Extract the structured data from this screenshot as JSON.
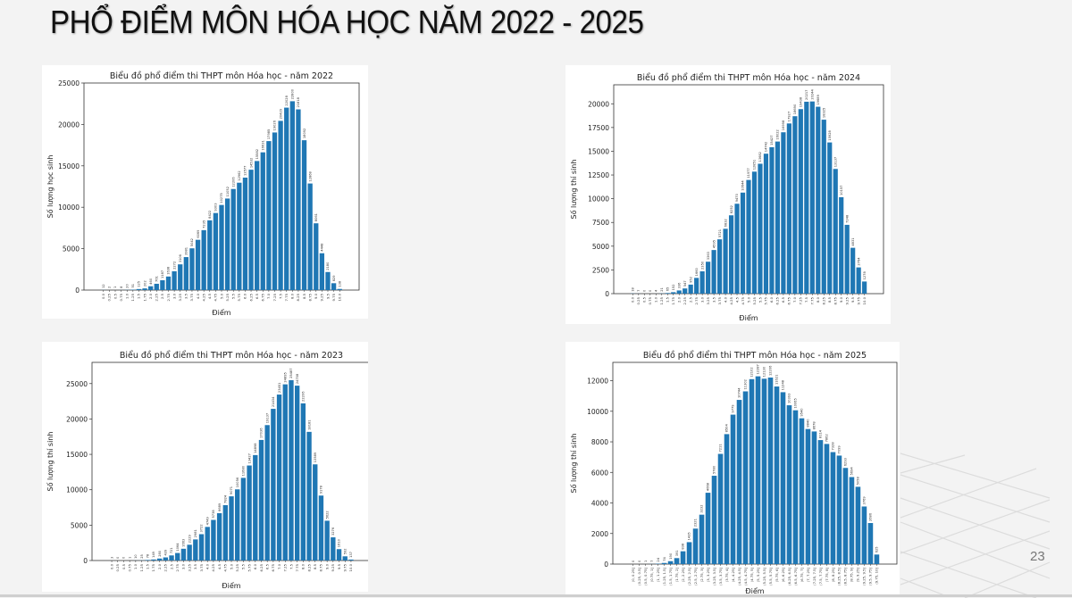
{
  "slide": {
    "title": "PHỔ ĐIỂM MÔN HÓA HỌC NĂM 2022 - 2025",
    "page_number": "23",
    "bar_color": "#1f77b4"
  },
  "chart_data": [
    {
      "type": "bar",
      "title": "Biểu đồ phổ điểm thi THPT môn Hóa học - năm 2022",
      "xlabel": "Điểm",
      "ylabel": "Số lượng học sinh",
      "ylim": [
        0,
        25000
      ],
      "yticks": [
        0,
        5000,
        10000,
        15000,
        20000,
        25000
      ],
      "categories": [
        "0.0",
        "0.25",
        "0.5",
        "0.75",
        "1.0",
        "1.25",
        "1.5",
        "1.75",
        "2.0",
        "2.25",
        "2.5",
        "2.75",
        "3.0",
        "3.25",
        "3.5",
        "3.75",
        "4.0",
        "4.25",
        "4.5",
        "4.75",
        "5.0",
        "5.25",
        "5.5",
        "5.75",
        "6.0",
        "6.25",
        "6.5",
        "6.75",
        "7.0",
        "7.25",
        "7.5",
        "7.75",
        "8.0",
        "8.25",
        "8.5",
        "8.75",
        "9.0",
        "9.25",
        "9.5",
        "9.75",
        "10.0"
      ],
      "values": [
        12,
        2,
        1,
        8,
        20,
        51,
        125,
        202,
        460,
        761,
        1187,
        1638,
        2272,
        3106,
        3981,
        5042,
        6069,
        7235,
        8422,
        9303,
        10275,
        11052,
        12206,
        12962,
        13577,
        14532,
        15582,
        16631,
        17985,
        19026,
        20429,
        22028,
        22800,
        21818,
        18092,
        12868,
        8061,
        4448,
        2180,
        829,
        138
      ],
      "grid": false,
      "legend": null
    },
    {
      "type": "bar",
      "title": "Biểu đồ phổ điểm thi THPT môn Hóa học - năm 2024",
      "xlabel": "Điểm",
      "ylabel": "Số lượng thí sinh",
      "ylim": [
        0,
        22000
      ],
      "yticks": [
        0,
        2500,
        5000,
        7500,
        10000,
        12500,
        15000,
        17500,
        20000
      ],
      "categories": [
        "0.0",
        "0.25",
        "0.5",
        "0.75",
        "1.0",
        "1.25",
        "1.5",
        "1.75",
        "2.0",
        "2.25",
        "2.5",
        "2.75",
        "3.0",
        "3.25",
        "3.5",
        "3.75",
        "4.0",
        "4.25",
        "4.5",
        "4.75",
        "5.0",
        "5.25",
        "5.5",
        "5.75",
        "6.0",
        "6.25",
        "6.5",
        "6.75",
        "7.0",
        "7.25",
        "7.5",
        "7.75",
        "8.0",
        "8.25",
        "8.5",
        "8.75",
        "9.0",
        "9.25",
        "9.5",
        "9.75",
        "10.0"
      ],
      "values": [
        18,
        7,
        0,
        0,
        4,
        21,
        65,
        152,
        336,
        547,
        952,
        1660,
        2350,
        3363,
        4595,
        5721,
        6832,
        8252,
        9470,
        10644,
        11977,
        12851,
        13682,
        14742,
        15427,
        16022,
        16998,
        17927,
        18690,
        19438,
        20217,
        20244,
        19689,
        18325,
        15928,
        13137,
        10157,
        7248,
        4831,
        2764,
        1278
      ],
      "grid": false,
      "legend": null
    },
    {
      "type": "bar",
      "title": "Biểu đồ phổ điểm thi THPT môn Hóa học - năm 2023",
      "xlabel": "Điểm",
      "ylabel": "Số lượng thí sinh",
      "ylim": [
        0,
        28000
      ],
      "yticks": [
        0,
        5000,
        10000,
        15000,
        20000,
        25000
      ],
      "categories": [
        "0.0",
        "0.25",
        "0.5",
        "0.75",
        "1.0",
        "1.25",
        "1.5",
        "1.75",
        "2.0",
        "2.25",
        "2.5",
        "2.75",
        "3.0",
        "3.25",
        "3.5",
        "3.75",
        "4.0",
        "4.25",
        "4.5",
        "4.75",
        "5.0",
        "5.25",
        "5.5",
        "5.75",
        "6.0",
        "6.25",
        "6.5",
        "6.75",
        "7.0",
        "7.25",
        "7.5",
        "7.75",
        "8.0",
        "8.25",
        "8.5",
        "8.75",
        "9.0",
        "9.25",
        "9.5",
        "9.75",
        "10.0"
      ],
      "values": [
        3,
        0,
        0,
        1,
        10,
        25,
        78,
        149,
        280,
        439,
        721,
        1064,
        1663,
        2229,
        2981,
        3722,
        4749,
        5738,
        6689,
        7824,
        9071,
        10056,
        11680,
        13427,
        14898,
        17036,
        19137,
        21434,
        23451,
        24895,
        25487,
        24708,
        22206,
        18181,
        13589,
        9178,
        5622,
        3276,
        1610,
        592,
        137
      ],
      "grid": false,
      "legend": null
    },
    {
      "type": "bar",
      "title": "Biểu đồ phổ điểm thi THPT môn Hóa học - năm 2025",
      "xlabel": "Điểm",
      "ylabel": "Số lượng thí sinh",
      "ylim": [
        0,
        13200
      ],
      "yticks": [
        0,
        2000,
        4000,
        6000,
        8000,
        10000,
        12000
      ],
      "categories": [
        "(0, 0.25]",
        "(0.25, 0.5]",
        "(0.5, 0.75]",
        "(0.75, 1]",
        "(1, 1.25]",
        "(1.25, 1.5]",
        "(1.5, 1.75]",
        "(1.75, 2]",
        "(2, 2.25]",
        "(2.25, 2.5]",
        "(2.5, 2.75]",
        "(2.75, 3]",
        "(3, 3.25]",
        "(3.25, 3.5]",
        "(3.5, 3.75]",
        "(3.75, 4]",
        "(4, 4.25]",
        "(4.25, 4.5]",
        "(4.5, 4.75]",
        "(4.75, 5]",
        "(5, 5.25]",
        "(5.25, 5.5]",
        "(5.5, 5.75]",
        "(5.75, 6]",
        "(6, 6.25]",
        "(6.25, 6.5]",
        "(6.5, 6.75]",
        "(6.75, 7]",
        "(7, 7.25]",
        "(7.25, 7.5]",
        "(7.5, 7.75]",
        "(7.75, 8]",
        "(8, 8.25]",
        "(8.25, 8.5]",
        "(8.5, 8.75]",
        "(8.75, 9]",
        "(9, 9.25]",
        "(9.25, 9.5]",
        "(9.5, 9.75]",
        "(9.75, 10]"
      ],
      "values": [
        0,
        0,
        1,
        7,
        24,
        74,
        190,
        391,
        838,
        1435,
        2321,
        3232,
        4668,
        5780,
        7211,
        8504,
        9779,
        10744,
        11302,
        12102,
        12287,
        12130,
        12206,
        11621,
        11248,
        10393,
        10065,
        9540,
        8840,
        8678,
        8114,
        7862,
        7328,
        7099,
        6293,
        5694,
        5058,
        3769,
        2686,
        625
      ],
      "grid": false,
      "legend": null
    }
  ]
}
